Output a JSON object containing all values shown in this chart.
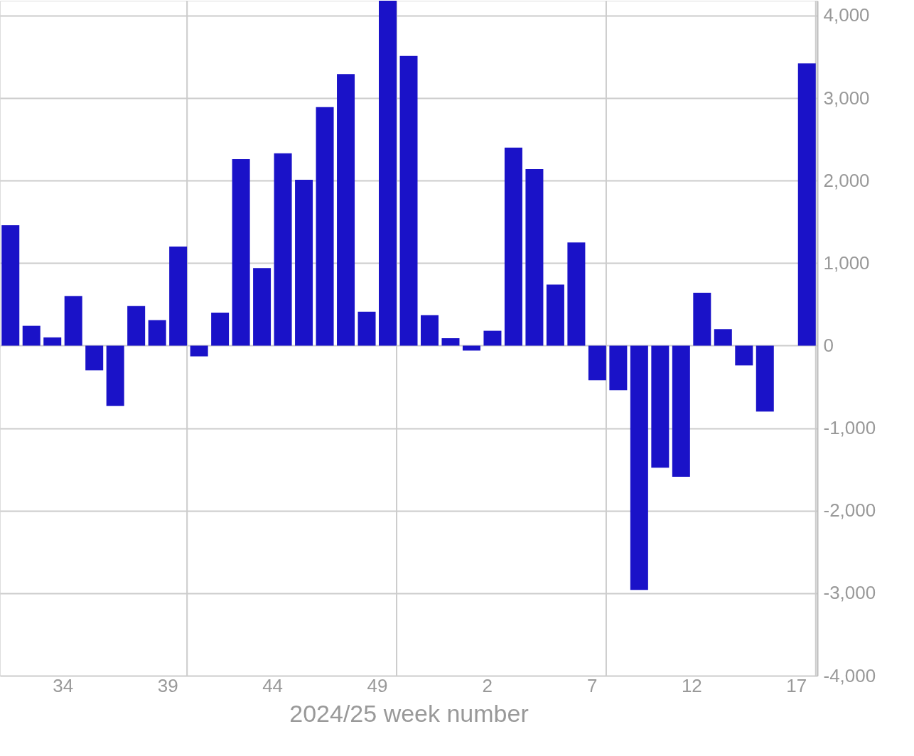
{
  "chart_data": {
    "type": "bar",
    "xlabel": "2024/25 week number",
    "categories": [
      null,
      null,
      null,
      "34",
      null,
      null,
      null,
      null,
      "39",
      null,
      null,
      null,
      null,
      "44",
      null,
      null,
      null,
      null,
      "49",
      null,
      null,
      null,
      null,
      "2",
      null,
      null,
      null,
      null,
      "7",
      null,
      null,
      null,
      null,
      "12",
      null,
      null,
      null,
      null,
      "17"
    ],
    "values": [
      1460,
      240,
      100,
      600,
      -300,
      -730,
      480,
      310,
      1200,
      -130,
      400,
      2260,
      940,
      2330,
      2010,
      2890,
      3290,
      410,
      4180,
      3510,
      370,
      90,
      -60,
      180,
      2400,
      2140,
      740,
      1250,
      -420,
      -540,
      -2960,
      -1480,
      -1590,
      640,
      200,
      -240,
      -800,
      null,
      3420
    ],
    "color": "#1a12c8",
    "ylim": [
      -4000,
      4180
    ],
    "yticks": [
      {
        "value": -4000,
        "label": "-4,000"
      },
      {
        "value": -3000,
        "label": "-3,000"
      },
      {
        "value": -2000,
        "label": "-2,000"
      },
      {
        "value": -1000,
        "label": "-1,000"
      },
      0,
      {
        "value": 1000,
        "label": "1,000"
      },
      {
        "value": 2000,
        "label": "2,000"
      },
      {
        "value": 3000,
        "label": "3,000"
      },
      {
        "value": 4000,
        "label": "4,000"
      }
    ],
    "grid": true
  }
}
